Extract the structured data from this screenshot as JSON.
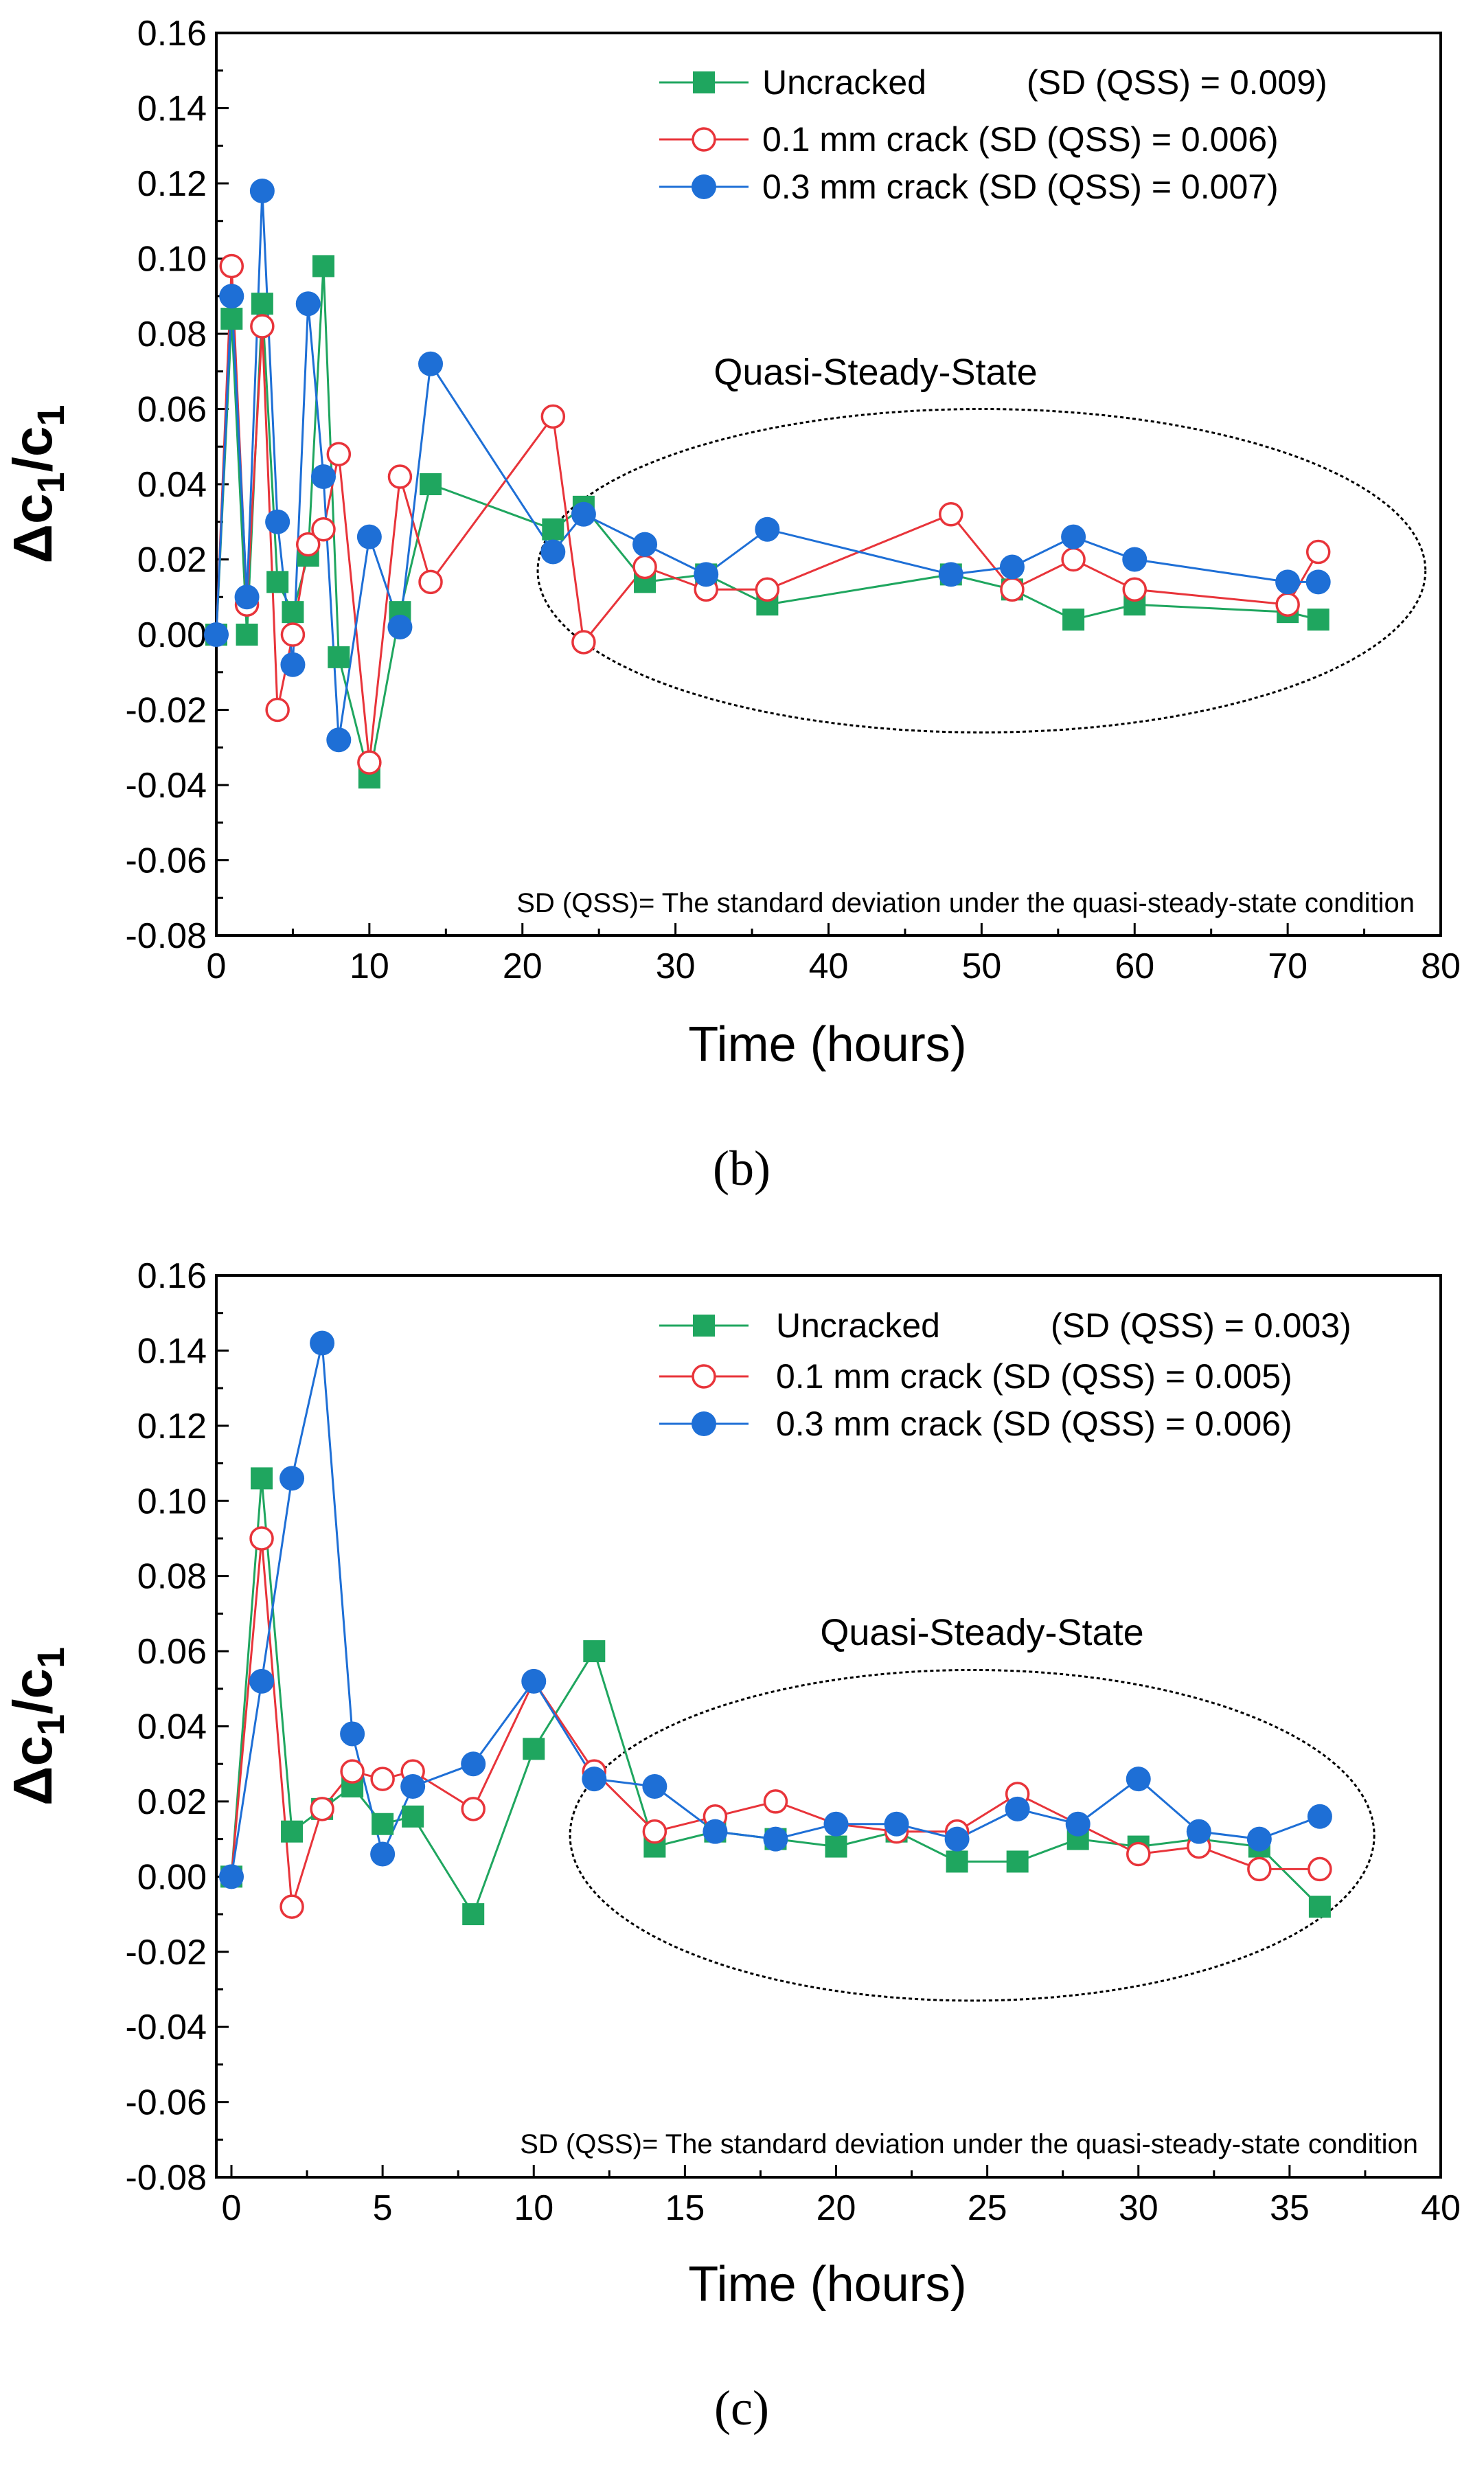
{
  "colors": {
    "uncracked": "#1fa65f",
    "crack01": "#e8343a",
    "crack03": "#1e6fd6",
    "axis": "#000000"
  },
  "chart_data": [
    {
      "panel_label": "(b)",
      "type": "line",
      "xlabel": "Time (hours)",
      "ylabel": {
        "main": "Δc",
        "sub": "1",
        "slash": "/c"
      },
      "xlim": [
        0,
        80
      ],
      "ylim": [
        -0.08,
        0.16
      ],
      "xticks": [
        "0",
        "10",
        "20",
        "30",
        "40",
        "50",
        "60",
        "70",
        "80"
      ],
      "xtick_values": [
        0,
        10,
        20,
        30,
        40,
        50,
        60,
        70,
        80
      ],
      "yticks": [
        "-0.08",
        "-0.06",
        "-0.04",
        "-0.02",
        "0.00",
        "0.02",
        "0.04",
        "0.06",
        "0.08",
        "0.10",
        "0.12",
        "0.14",
        "0.16"
      ],
      "ytick_values": [
        -0.08,
        -0.06,
        -0.04,
        -0.02,
        0.0,
        0.02,
        0.04,
        0.06,
        0.08,
        0.1,
        0.12,
        0.14,
        0.16
      ],
      "region_label": "Quasi-Steady-State",
      "ellipse": {
        "cx": 50,
        "cy": 0.017,
        "rx": 29,
        "ry": 0.043
      },
      "note": "SD (QSS)= The standard deviation under the quasi-steady-state condition",
      "series": [
        {
          "name": "Uncracked",
          "sd_label": "(SD (QSS) = 0.009)",
          "marker": "square",
          "color_key": "uncracked",
          "x": [
            0,
            1,
            2,
            3,
            4,
            5,
            6,
            7,
            8,
            10,
            12,
            14,
            22,
            24,
            28,
            32,
            36,
            48,
            52,
            56,
            60,
            70,
            72
          ],
          "y": [
            0.0,
            0.084,
            0.0,
            0.088,
            0.014,
            0.006,
            0.021,
            0.098,
            -0.006,
            -0.038,
            0.006,
            0.04,
            0.028,
            0.034,
            0.014,
            0.016,
            0.008,
            0.016,
            0.012,
            0.004,
            0.008,
            0.006,
            0.004
          ]
        },
        {
          "name": "0.1 mm crack",
          "sd_label": "(SD (QSS) = 0.006)",
          "marker": "open-circle",
          "color_key": "crack01",
          "x": [
            0,
            1,
            2,
            3,
            4,
            5,
            6,
            7,
            8,
            10,
            12,
            14,
            22,
            24,
            28,
            32,
            36,
            48,
            52,
            56,
            60,
            70,
            72
          ],
          "y": [
            0.0,
            0.098,
            0.008,
            0.082,
            -0.02,
            0.0,
            0.024,
            0.028,
            0.048,
            -0.034,
            0.042,
            0.014,
            0.058,
            -0.002,
            0.018,
            0.012,
            0.012,
            0.032,
            0.012,
            0.02,
            0.012,
            0.008,
            0.022
          ]
        },
        {
          "name": "0.3 mm crack",
          "sd_label": "(SD (QSS) = 0.007)",
          "marker": "filled-circle",
          "color_key": "crack03",
          "x": [
            0,
            1,
            2,
            3,
            4,
            5,
            6,
            7,
            8,
            10,
            12,
            14,
            22,
            24,
            28,
            32,
            36,
            48,
            52,
            56,
            60,
            70,
            72
          ],
          "y": [
            0.0,
            0.09,
            0.01,
            0.118,
            0.03,
            -0.008,
            0.088,
            0.042,
            -0.028,
            0.026,
            0.002,
            0.072,
            0.022,
            0.032,
            0.024,
            0.016,
            0.028,
            0.016,
            0.018,
            0.026,
            0.02,
            0.014,
            0.014
          ]
        }
      ]
    },
    {
      "panel_label": "(c)",
      "type": "line",
      "xlabel": "Time (hours)",
      "ylabel": {
        "main": "Δc",
        "sub": "1",
        "slash": "/c"
      },
      "xlim": [
        -0.5,
        40
      ],
      "ylim": [
        -0.08,
        0.16
      ],
      "xticks": [
        "0",
        "5",
        "10",
        "15",
        "20",
        "25",
        "30",
        "35",
        "40"
      ],
      "xtick_values": [
        0,
        5,
        10,
        15,
        20,
        25,
        30,
        35,
        40
      ],
      "yticks": [
        "-0.08",
        "-0.06",
        "-0.04",
        "-0.02",
        "0.00",
        "0.02",
        "0.04",
        "0.06",
        "0.08",
        "0.10",
        "0.12",
        "0.14",
        "0.16"
      ],
      "ytick_values": [
        -0.08,
        -0.06,
        -0.04,
        -0.02,
        0.0,
        0.02,
        0.04,
        0.06,
        0.08,
        0.1,
        0.12,
        0.14,
        0.16
      ],
      "region_label": "Quasi-Steady-State",
      "ellipse": {
        "cx": 24.5,
        "cy": 0.011,
        "rx": 13.3,
        "ry": 0.044
      },
      "note": "SD (QSS)= The standard deviation under the quasi-steady-state condition",
      "series": [
        {
          "name": "Uncracked",
          "sd_label": "(SD (QSS) = 0.003)",
          "marker": "square",
          "color_key": "uncracked",
          "x": [
            0,
            1,
            2,
            3,
            4,
            5,
            6,
            8,
            10,
            12,
            14,
            16,
            18,
            20,
            22,
            24,
            26,
            28,
            30,
            32,
            34,
            36
          ],
          "y": [
            0.0,
            0.106,
            0.012,
            0.018,
            0.024,
            0.014,
            0.016,
            -0.01,
            0.034,
            0.06,
            0.008,
            0.012,
            0.01,
            0.008,
            0.012,
            0.004,
            0.004,
            0.01,
            0.008,
            0.01,
            0.008,
            -0.008
          ]
        },
        {
          "name": "0.1 mm crack",
          "sd_label": "(SD (QSS) = 0.005)",
          "marker": "open-circle",
          "color_key": "crack01",
          "x": [
            0,
            1,
            2,
            3,
            4,
            5,
            6,
            8,
            10,
            12,
            14,
            16,
            18,
            20,
            22,
            24,
            26,
            28,
            30,
            32,
            34,
            36
          ],
          "y": [
            0.0,
            0.09,
            -0.008,
            0.018,
            0.028,
            0.026,
            0.028,
            0.018,
            0.052,
            0.028,
            0.012,
            0.016,
            0.02,
            0.014,
            0.012,
            0.012,
            0.022,
            0.014,
            0.006,
            0.008,
            0.002,
            0.002
          ]
        },
        {
          "name": "0.3 mm crack",
          "sd_label": "(SD (QSS) = 0.006)",
          "marker": "filled-circle",
          "color_key": "crack03",
          "x": [
            0,
            1,
            2,
            3,
            4,
            5,
            6,
            8,
            10,
            12,
            14,
            16,
            18,
            20,
            22,
            24,
            26,
            28,
            30,
            32,
            34,
            36
          ],
          "y": [
            0.0,
            0.052,
            0.106,
            0.142,
            0.038,
            0.006,
            0.024,
            0.03,
            0.052,
            0.026,
            0.024,
            0.012,
            0.01,
            0.014,
            0.014,
            0.01,
            0.018,
            0.014,
            0.026,
            0.012,
            0.01,
            0.016
          ]
        }
      ]
    }
  ]
}
